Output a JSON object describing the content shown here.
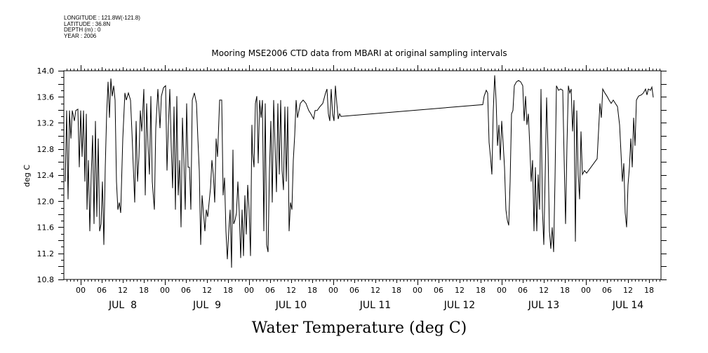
{
  "header": {
    "longitude": "LONGITUDE : 121.8W(-121.8)",
    "latitude": "LATITUDE : 36.8N",
    "depth": "DEPTH (m) : 0",
    "year": "YEAR : 2006"
  },
  "chart_data": {
    "type": "line",
    "title": "Mooring MSE2006 CTD data from MBARI  at original sampling intervals",
    "xlabel": "Water Temperature (deg C)",
    "ylabel": "deg C",
    "x_units": "hours since JUL 8 00:00 2006",
    "xlim": [
      -4.8,
      165.4
    ],
    "ylim": [
      10.8,
      14.0
    ],
    "y_ticks": [
      10.8,
      11.2,
      11.6,
      12.0,
      12.4,
      12.8,
      13.2,
      13.6,
      14.0
    ],
    "y_tick_labels": [
      "10.8",
      "11.2",
      "11.6",
      "12.0",
      "12.4",
      "12.8",
      "13.2",
      "13.6",
      "14.0"
    ],
    "x_tick_labels": [
      "00",
      "06",
      "12",
      "18",
      "00",
      "06",
      "12",
      "18",
      "00",
      "06",
      "12",
      "18",
      "00",
      "06",
      "12",
      "18",
      "00",
      "06",
      "12",
      "18",
      "00",
      "06",
      "12",
      "18",
      "00",
      "06",
      "12",
      "18"
    ],
    "day_labels": [
      "JUL  8",
      "JUL  9",
      "JUL 10",
      "JUL 11",
      "JUL 12",
      "JUL 13",
      "JUL 14"
    ],
    "grid": false,
    "color": "#000000",
    "t": [
      -4.4,
      -4.0,
      -3.6,
      -3.2,
      -2.8,
      -2.4,
      -1.8,
      -1.4,
      -0.8,
      -0.4,
      0,
      0.4,
      0.8,
      1.2,
      1.6,
      1.8,
      2.2,
      2.6,
      3.0,
      3.4,
      3.8,
      4.2,
      4.6,
      5.0,
      5.4,
      5.8,
      6.2,
      6.6,
      7.0,
      7.4,
      7.8,
      8.2,
      8.6,
      9.0,
      9.4,
      9.8,
      10.2,
      10.6,
      11.0,
      11.4,
      12.0,
      12.6,
      13.0,
      13.6,
      14.2,
      14.6,
      15.0,
      15.4,
      15.8,
      16.2,
      16.6,
      17.0,
      17.4,
      18.0,
      18.4,
      18.8,
      19.2,
      19.6,
      20.0,
      20.4,
      21.0,
      21.4,
      22.0,
      22.6,
      23.0,
      23.6,
      24.2,
      24.6,
      25.0,
      25.4,
      25.8,
      26.2,
      26.6,
      27.0,
      27.4,
      27.8,
      28.2,
      28.6,
      29.0,
      29.4,
      29.8,
      30.2,
      30.6,
      31.0,
      31.4,
      31.8,
      32.4,
      33.0,
      33.4,
      33.8,
      34.2,
      34.6,
      35.0,
      35.4,
      35.8,
      36.2,
      36.6,
      37.0,
      37.4,
      37.8,
      38.2,
      38.6,
      39.0,
      39.6,
      40.2,
      40.6,
      41.0,
      41.4,
      41.8,
      42.2,
      42.6,
      43.0,
      43.4,
      43.6,
      44.0,
      44.4,
      44.8,
      45.2,
      45.6,
      46.0,
      46.4,
      46.8,
      47.2,
      47.6,
      48.0,
      48.4,
      48.8,
      49.0,
      49.4,
      49.8,
      50.2,
      50.6,
      51.0,
      51.4,
      51.8,
      52.2,
      52.6,
      53.0,
      53.4,
      53.8,
      54.2,
      54.6,
      55.0,
      55.4,
      55.8,
      56.2,
      56.6,
      57.0,
      57.4,
      57.8,
      58.2,
      58.6,
      59.0,
      59.4,
      59.8,
      60.2,
      60.6,
      61.0,
      61.4,
      61.8,
      62.2,
      62.6,
      63.4,
      64.2,
      65.0,
      65.6,
      66.4,
      66.8,
      67.4,
      68.2,
      69.0,
      69.8,
      70.2,
      70.6,
      71.0,
      71.4,
      71.8,
      72.2,
      72.6,
      73.0,
      73.4,
      73.8,
      74.2,
      114.6,
      115.0,
      115.6,
      116.0,
      116.4,
      116.8,
      117.2,
      117.6,
      118.0,
      118.4,
      118.8,
      119.2,
      119.6,
      120.0,
      120.4,
      120.8,
      121.2,
      121.6,
      122.0,
      122.4,
      122.8,
      123.2,
      123.6,
      124.2,
      124.8,
      125.4,
      126.0,
      126.4,
      126.8,
      127.2,
      127.6,
      128.0,
      128.4,
      128.8,
      129.2,
      129.6,
      130.0,
      130.4,
      130.8,
      131.2,
      131.6,
      132.0,
      132.4,
      132.8,
      133.2,
      133.6,
      134.0,
      134.4,
      134.8,
      135.2,
      135.6,
      136.2,
      136.8,
      137.4,
      137.8,
      138.2,
      138.6,
      139.0,
      139.4,
      139.8,
      140.2,
      140.6,
      141.0,
      141.4,
      141.8,
      142.2,
      142.6,
      143.0,
      143.6,
      144.2,
      147.2,
      147.6,
      148.0,
      148.4,
      148.8,
      149.4,
      150.0,
      150.6,
      151.2,
      151.8,
      152.4,
      153.0,
      153.6,
      154.0,
      154.4,
      154.8,
      155.2,
      155.6,
      156.0,
      156.4,
      156.8,
      157.2,
      157.6,
      158.0,
      158.4,
      159.0,
      159.8,
      160.4,
      161.0,
      161.4,
      161.8,
      162.4,
      162.8,
      163.2
    ],
    "v": [
      12.3,
      13.39,
      12.03,
      13.39,
      12.96,
      13.39,
      13.23,
      13.39,
      13.41,
      12.52,
      13.39,
      12.68,
      13.39,
      12.3,
      13.34,
      11.87,
      12.63,
      11.54,
      12.41,
      13.01,
      11.65,
      13.23,
      11.76,
      12.96,
      11.54,
      11.65,
      12.3,
      11.33,
      12.52,
      13.34,
      13.83,
      13.28,
      13.88,
      13.61,
      13.77,
      13.55,
      12.3,
      11.87,
      11.98,
      11.82,
      12.96,
      13.66,
      13.55,
      13.66,
      13.55,
      13.07,
      12.52,
      11.98,
      13.23,
      12.3,
      12.68,
      13.39,
      13.07,
      13.72,
      12.09,
      13.5,
      12.85,
      12.41,
      13.61,
      12.3,
      11.87,
      13.12,
      13.72,
      13.12,
      13.61,
      13.74,
      13.77,
      12.47,
      13.17,
      13.72,
      12.85,
      12.2,
      13.45,
      11.87,
      13.61,
      12.09,
      12.63,
      11.6,
      13.28,
      12.63,
      11.87,
      13.5,
      12.52,
      12.52,
      11.87,
      13.55,
      13.66,
      13.5,
      12.96,
      12.47,
      11.33,
      12.09,
      11.82,
      11.54,
      11.87,
      11.76,
      11.98,
      12.2,
      12.63,
      12.41,
      11.98,
      12.96,
      12.68,
      13.55,
      13.55,
      12.09,
      12.36,
      11.54,
      11.11,
      11.54,
      11.87,
      10.98,
      12.79,
      11.65,
      11.71,
      11.82,
      12.3,
      11.82,
      11.13,
      11.87,
      11.16,
      12.09,
      11.49,
      12.25,
      11.87,
      11.16,
      13.17,
      12.74,
      12.52,
      13.5,
      13.61,
      12.58,
      13.55,
      13.28,
      13.55,
      11.54,
      13.5,
      11.33,
      11.22,
      12.47,
      13.23,
      11.98,
      13.55,
      12.85,
      12.14,
      13.5,
      12.41,
      13.55,
      12.47,
      12.17,
      13.45,
      12.3,
      13.45,
      11.54,
      11.98,
      11.87,
      12.63,
      13.01,
      13.55,
      13.28,
      13.39,
      13.5,
      13.55,
      13.5,
      13.39,
      13.34,
      13.26,
      13.39,
      13.39,
      13.45,
      13.5,
      13.66,
      13.72,
      13.34,
      13.23,
      13.72,
      13.34,
      13.23,
      13.77,
      13.5,
      13.26,
      13.34,
      13.3,
      13.48,
      13.61,
      13.7,
      13.66,
      12.9,
      12.68,
      12.41,
      13.39,
      13.93,
      13.55,
      12.85,
      13.17,
      12.63,
      13.23,
      12.9,
      12.52,
      11.87,
      11.71,
      11.63,
      12.3,
      13.34,
      13.39,
      13.77,
      13.83,
      13.85,
      13.83,
      13.77,
      13.23,
      13.61,
      13.17,
      13.34,
      12.85,
      12.3,
      12.63,
      11.54,
      12.52,
      11.54,
      12.41,
      11.87,
      13.72,
      11.87,
      11.33,
      12.41,
      13.59,
      12.79,
      11.54,
      11.27,
      11.6,
      11.22,
      12.36,
      13.77,
      13.7,
      13.72,
      13.7,
      12.63,
      11.65,
      12.85,
      13.77,
      13.66,
      13.72,
      13.07,
      13.55,
      11.38,
      13.39,
      12.41,
      12.03,
      13.07,
      12.41,
      12.47,
      12.43,
      12.65,
      13.07,
      13.5,
      13.28,
      13.72,
      13.66,
      13.61,
      13.55,
      13.5,
      13.55,
      13.5,
      13.45,
      13.17,
      12.74,
      12.3,
      12.58,
      11.82,
      11.6,
      12.25,
      12.52,
      12.96,
      12.52,
      13.28,
      12.85,
      13.55,
      13.61,
      13.63,
      13.66,
      13.72,
      13.63,
      13.72,
      13.7,
      13.75,
      13.59
    ]
  }
}
